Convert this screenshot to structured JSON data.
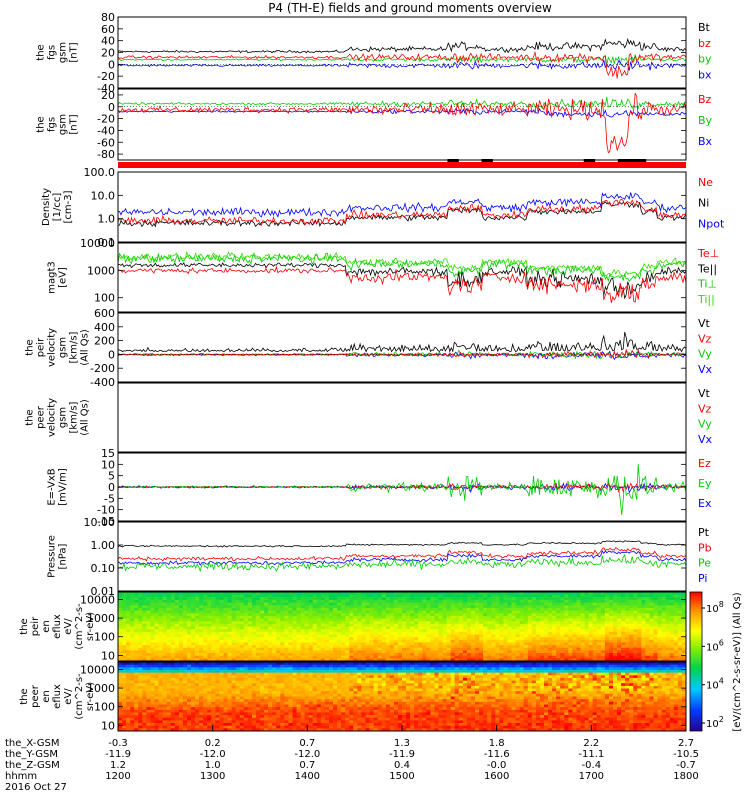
{
  "title": "P4 (TH-E) fields and ground moments overview",
  "colors": {
    "black": "#000000",
    "red": "#ff0000",
    "green": "#00cc00",
    "blue": "#0000ff",
    "lime": "#33dd00"
  },
  "chart_data": [
    {
      "type": "line",
      "panel": "fgs",
      "ylabel": [
        "the",
        "fgs",
        "gsm",
        "[nT]"
      ],
      "yticks": [
        "80",
        "60",
        "40",
        "20",
        "0",
        "-20",
        "-40"
      ],
      "ylim": [
        -40,
        80
      ],
      "legend": [
        {
          "name": "Bt",
          "color": "#000000"
        },
        {
          "name": "bz",
          "color": "#ff0000"
        },
        {
          "name": "by",
          "color": "#00cc00"
        },
        {
          "name": "bx",
          "color": "#0000ff"
        }
      ]
    },
    {
      "type": "line",
      "panel": "fgs-gsm",
      "ylabel": [
        "the",
        "fgs",
        "gsm",
        "[nT]"
      ],
      "yticks": [
        "20",
        "0",
        "-20",
        "-40",
        "-60",
        "-80"
      ],
      "ylim": [
        -90,
        30
      ],
      "legend": [
        {
          "name": "Bz",
          "color": "#ff0000"
        },
        {
          "name": "By",
          "color": "#00cc00"
        },
        {
          "name": "Bx",
          "color": "#0000ff"
        }
      ]
    },
    {
      "type": "line",
      "panel": "density",
      "yscale": "log",
      "ylabel": [
        "Density",
        "[1/cc]",
        "[cm-3]"
      ],
      "yticks": [
        "100.0",
        "10.0",
        "1.0",
        "0.1"
      ],
      "ylim": [
        0.1,
        100
      ],
      "legend": [
        {
          "name": "Ne",
          "color": "#ff0000"
        },
        {
          "name": "Ni",
          "color": "#000000"
        },
        {
          "name": "Npot",
          "color": "#0000ff"
        }
      ]
    },
    {
      "type": "line",
      "panel": "temperature",
      "yscale": "log",
      "ylabel": [
        "magt3",
        "[eV]"
      ],
      "yticks": [
        "10000",
        "1000",
        "100"
      ],
      "ylim": [
        30,
        10000
      ],
      "legend": [
        {
          "name": "Te⊥",
          "color": "#ff0000"
        },
        {
          "name": "Te||",
          "color": "#000000"
        },
        {
          "name": "Ti⊥",
          "color": "#00cc00"
        },
        {
          "name": "Ti||",
          "color": "#33dd00"
        }
      ]
    },
    {
      "type": "line",
      "panel": "peir-velocity",
      "ylabel": [
        "the",
        "peir",
        "velocity",
        "gsm",
        "[km/s]",
        "(All Qs)"
      ],
      "yticks": [
        "600",
        "400",
        "200",
        "0",
        "-200",
        "-400"
      ],
      "ylim": [
        -400,
        600
      ],
      "legend": [
        {
          "name": "Vt",
          "color": "#000000"
        },
        {
          "name": "Vz",
          "color": "#ff0000"
        },
        {
          "name": "Vy",
          "color": "#00cc00"
        },
        {
          "name": "Vx",
          "color": "#0000ff"
        }
      ]
    },
    {
      "type": "line",
      "panel": "peer-velocity",
      "ylabel": [
        "the",
        "peer",
        "velocity",
        "gsm",
        "[km/s]",
        "(All Qs)"
      ],
      "yticks": [],
      "legend": [
        {
          "name": "Vt",
          "color": "#000000"
        },
        {
          "name": "Vz",
          "color": "#ff0000"
        },
        {
          "name": "Vy",
          "color": "#00cc00"
        },
        {
          "name": "Vx",
          "color": "#0000ff"
        }
      ]
    },
    {
      "type": "line",
      "panel": "efield",
      "ylabel": [
        "E=-VxB",
        "[mV/m]"
      ],
      "yticks": [
        "15",
        "10",
        "5",
        "0",
        "-5",
        "-10",
        "-15"
      ],
      "ylim": [
        -15,
        15
      ],
      "legend": [
        {
          "name": "Ez",
          "color": "#ff0000"
        },
        {
          "name": "Ey",
          "color": "#00cc00"
        },
        {
          "name": "Ex",
          "color": "#0000ff"
        }
      ]
    },
    {
      "type": "line",
      "panel": "pressure",
      "yscale": "log",
      "ylabel": [
        "Pressure",
        "[nPa]"
      ],
      "yticks": [
        "10.00",
        "1.00",
        "0.10",
        "0.01"
      ],
      "ylim": [
        0.01,
        10
      ],
      "legend": [
        {
          "name": "Pt",
          "color": "#000000"
        },
        {
          "name": "Pb",
          "color": "#ff0000"
        },
        {
          "name": "Pe",
          "color": "#00cc00"
        },
        {
          "name": "Pi",
          "color": "#0000ff"
        }
      ]
    },
    {
      "type": "heatmap",
      "panel": "peir-spectrogram",
      "yscale": "log",
      "ylabel": [
        "the",
        "peir",
        "en",
        "eflux",
        "eV/",
        "(cm^2-s-",
        "sr-eV)"
      ],
      "yticks": [
        "10000",
        "1000",
        "100",
        "10"
      ],
      "ylim": [
        5,
        25000
      ]
    },
    {
      "type": "heatmap",
      "panel": "peer-spectrogram",
      "yscale": "log",
      "ylabel": [
        "the",
        "peer",
        "en",
        "eflux",
        "eV/",
        "(cm^2-s-",
        "sr-eV)"
      ],
      "yticks": [
        "10000",
        "1000",
        "100",
        "10"
      ],
      "ylim": [
        5,
        25000
      ]
    }
  ],
  "colorbar": {
    "ticks": [
      "10^8",
      "10^6",
      "10^4",
      "10^2"
    ],
    "label": "[eV/(cm^2-s-sr-eV)] (All Qs)"
  },
  "xaxis": {
    "rows": [
      {
        "label": "the_X-GSM",
        "values": [
          "-0.3",
          "0.2",
          "0.7",
          "1.3",
          "1.8",
          "2.2",
          "2.7"
        ]
      },
      {
        "label": "the_Y-GSM",
        "values": [
          "-11.9",
          "-12.0",
          "-12.0",
          "-11.9",
          "-11.6",
          "-11.1",
          "-10.5"
        ]
      },
      {
        "label": "the_Z-GSM",
        "values": [
          "1.2",
          "1.0",
          "0.7",
          "0.4",
          "-0.0",
          "-0.4",
          "-0.7"
        ]
      },
      {
        "label": "hhmm",
        "values": [
          "1200",
          "1300",
          "1400",
          "1500",
          "1600",
          "1700",
          "1800"
        ]
      }
    ],
    "date": "2016 Oct 27"
  }
}
